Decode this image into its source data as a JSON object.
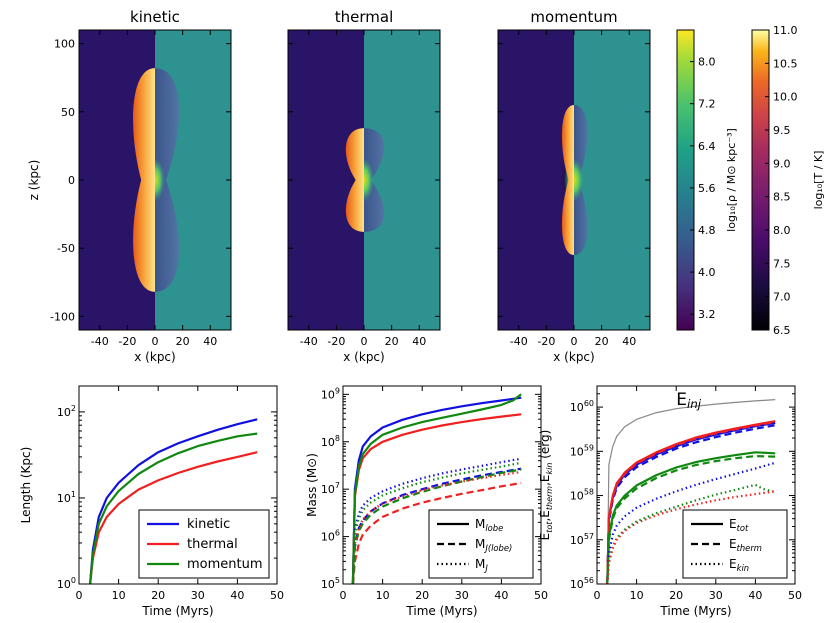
{
  "panels": [
    {
      "title": "kinetic",
      "left_half": "temperature",
      "lobe_half_width": 14,
      "lobe_half_height": 82,
      "waist": 10
    },
    {
      "title": "thermal",
      "left_half": "temperature",
      "lobe_half_width": 12,
      "lobe_half_height": 38,
      "waist": 6
    },
    {
      "title": "momentum",
      "left_half": "temperature",
      "lobe_half_width": 8,
      "lobe_half_height": 55,
      "waist": 4
    }
  ],
  "maps": {
    "xlabel": "x (kpc)",
    "ylabel": "z (kpc)",
    "xticks": [
      -40,
      -20,
      0,
      20,
      40
    ],
    "yticks": [
      -100,
      -50,
      0,
      50,
      100
    ],
    "xlim": [
      -55,
      55
    ],
    "ylim": [
      -110,
      110
    ]
  },
  "colorbars": [
    {
      "label": "log₁₀[ρ / M⊙ kpc⁻³]",
      "ticks": [
        "3.2",
        "4.0",
        "4.8",
        "5.6",
        "6.4",
        "7.2",
        "8.0"
      ],
      "range": [
        2.9,
        8.6
      ],
      "colormap": "viridis"
    },
    {
      "label": "log₁₀[T / K]",
      "ticks": [
        "6.5",
        "7.0",
        "7.5",
        "8.0",
        "8.5",
        "9.0",
        "9.5",
        "10.0",
        "10.5",
        "11.0"
      ],
      "range": [
        6.5,
        11.0
      ],
      "colormap": "inferno"
    }
  ],
  "colors": {
    "kinetic": "#1010e0",
    "thermal": "#f02020",
    "momentum": "#108810",
    "injected": "#888888"
  },
  "chart_data": [
    {
      "type": "line",
      "xlabel": "Time (Myrs)",
      "ylabel": "Length (Kpc)",
      "xlim": [
        0,
        50
      ],
      "ylim": [
        1,
        200
      ],
      "log_y": true,
      "xticks": [
        0,
        10,
        20,
        30,
        40,
        50
      ],
      "yticks": [
        {
          "v": 1,
          "t": "10",
          "e": "0"
        },
        {
          "v": 10,
          "t": "10",
          "e": "1"
        },
        {
          "v": 100,
          "t": "10",
          "e": "2"
        }
      ],
      "legend_position": "lower-right",
      "legend": [
        {
          "label": "kinetic",
          "color": "#1010e0",
          "style": "solid"
        },
        {
          "label": "thermal",
          "color": "#f02020",
          "style": "solid"
        },
        {
          "label": "momentum",
          "color": "#108810",
          "style": "solid"
        }
      ],
      "series": [
        {
          "key": "kinetic",
          "color": "#1010e0",
          "style": "solid",
          "x": [
            2.8,
            3.5,
            5,
            7,
            10,
            15,
            20,
            25,
            30,
            35,
            40,
            45
          ],
          "y": [
            1,
            2.5,
            6,
            10,
            15,
            24,
            34,
            43,
            52,
            62,
            72,
            82
          ]
        },
        {
          "key": "thermal",
          "color": "#f02020",
          "style": "solid",
          "x": [
            2.8,
            3.5,
            5,
            7,
            10,
            15,
            20,
            25,
            30,
            35,
            40,
            45
          ],
          "y": [
            1,
            2,
            4,
            6,
            8.5,
            12.5,
            16,
            19.5,
            23,
            26.5,
            30,
            34
          ]
        },
        {
          "key": "momentum",
          "color": "#108810",
          "style": "solid",
          "x": [
            2.8,
            3.5,
            5,
            7,
            10,
            15,
            20,
            25,
            30,
            35,
            40,
            45
          ],
          "y": [
            1,
            2.2,
            5,
            8,
            12,
            19,
            26,
            33,
            40,
            46,
            52,
            56
          ]
        }
      ]
    },
    {
      "type": "line",
      "xlabel": "Time (Myrs)",
      "ylabel": "Mass (M⊙)",
      "xlim": [
        0,
        50
      ],
      "ylim": [
        100000,
        1500000000
      ],
      "log_y": true,
      "xticks": [
        0,
        10,
        20,
        30,
        40,
        50
      ],
      "yticks": [
        {
          "v": 100000,
          "t": "10",
          "e": "5"
        },
        {
          "v": 1000000,
          "t": "10",
          "e": "6"
        },
        {
          "v": 10000000,
          "t": "10",
          "e": "7"
        },
        {
          "v": 100000000,
          "t": "10",
          "e": "8"
        },
        {
          "v": 1000000000,
          "t": "10",
          "e": "9"
        }
      ],
      "legend_position": "lower-right",
      "legend": [
        {
          "label": "M",
          "sub": "lobe",
          "color": "#000000",
          "style": "solid"
        },
        {
          "label": "M",
          "sub": "J(lobe)",
          "color": "#000000",
          "style": "dashed"
        },
        {
          "label": "M",
          "sub": "J",
          "color": "#000000",
          "style": "dotted"
        }
      ],
      "series": [
        {
          "key": "kinetic-lobe",
          "color": "#1010e0",
          "style": "solid",
          "x": [
            2.5,
            3,
            4,
            5,
            7,
            10,
            15,
            20,
            25,
            30,
            35,
            40,
            45
          ],
          "y": [
            100000,
            10000000,
            40000000,
            80000000,
            130000000,
            200000000,
            290000000,
            380000000,
            470000000,
            560000000,
            650000000,
            740000000,
            850000000
          ]
        },
        {
          "key": "thermal-lobe",
          "color": "#f02020",
          "style": "solid",
          "x": [
            2.5,
            3,
            4,
            5,
            7,
            10,
            15,
            20,
            25,
            30,
            35,
            40,
            45
          ],
          "y": [
            100000,
            7000000,
            25000000,
            45000000,
            70000000,
            100000000,
            140000000,
            180000000,
            220000000,
            260000000,
            300000000,
            340000000,
            380000000
          ]
        },
        {
          "key": "momentum-lobe",
          "color": "#108810",
          "style": "solid",
          "x": [
            2.5,
            3,
            4,
            5,
            7,
            10,
            15,
            20,
            25,
            30,
            35,
            40,
            43,
            45
          ],
          "y": [
            100000,
            8000000,
            30000000,
            55000000,
            90000000,
            140000000,
            200000000,
            260000000,
            320000000,
            390000000,
            480000000,
            600000000,
            750000000,
            1000000000
          ]
        },
        {
          "key": "kinetic-jlobe",
          "color": "#1010e0",
          "style": "dashed",
          "x": [
            2.5,
            3,
            4,
            5,
            7,
            10,
            15,
            20,
            25,
            30,
            35,
            40,
            45
          ],
          "y": [
            100000,
            700000,
            1500000,
            2200000,
            3400000,
            5000000,
            7500000,
            10000000,
            13000000,
            16000000,
            19500000,
            23000000,
            27000000
          ]
        },
        {
          "key": "thermal-jlobe",
          "color": "#f02020",
          "style": "dashed",
          "x": [
            2.5,
            3,
            4,
            5,
            7,
            10,
            15,
            20,
            25,
            30,
            35,
            40,
            45
          ],
          "y": [
            100000,
            300000,
            700000,
            1100000,
            1700000,
            2600000,
            3900000,
            5200000,
            6500000,
            8000000,
            9500000,
            11500000,
            13500000
          ]
        },
        {
          "key": "momentum-jlobe",
          "color": "#108810",
          "style": "dashed",
          "x": [
            2.5,
            3,
            4,
            5,
            7,
            10,
            15,
            20,
            25,
            30,
            35,
            40,
            45
          ],
          "y": [
            100000,
            600000,
            1300000,
            1900000,
            2900000,
            4300000,
            6400000,
            8800000,
            11500000,
            14500000,
            18000000,
            22000000,
            26000000
          ]
        },
        {
          "key": "kinetic-j",
          "color": "#1010e0",
          "style": "dotted",
          "x": [
            2.5,
            3,
            4,
            5,
            7,
            10,
            15,
            20,
            25,
            30,
            35,
            40,
            45
          ],
          "y": [
            100000,
            1500000,
            3000000,
            4500000,
            6500000,
            9000000,
            13000000,
            17000000,
            21500000,
            26000000,
            31000000,
            37000000,
            44000000
          ]
        },
        {
          "key": "thermal-j",
          "color": "#f02020",
          "style": "dotted",
          "x": [
            2.5,
            3,
            4,
            5,
            7,
            10,
            15,
            20,
            25,
            30,
            35,
            40,
            45
          ],
          "y": [
            100000,
            700000,
            1500000,
            2300000,
            3400000,
            5000000,
            7000000,
            9500000,
            12000000,
            14500000,
            17000000,
            20000000,
            23000000
          ]
        },
        {
          "key": "momentum-j",
          "color": "#108810",
          "style": "dotted",
          "x": [
            2.5,
            3,
            4,
            5,
            7,
            10,
            15,
            20,
            25,
            30,
            35,
            40,
            45
          ],
          "y": [
            100000,
            1200000,
            2400000,
            3600000,
            5200000,
            7400000,
            10500000,
            14000000,
            17500000,
            21500000,
            25500000,
            30000000,
            36000000
          ]
        }
      ]
    },
    {
      "type": "line",
      "xlabel": "Time (Myrs)",
      "ylabel": "E_tot,E_therm,E_kin (erg)",
      "xlim": [
        0,
        50
      ],
      "ylim": [
        1e+56,
        3e+60
      ],
      "log_y": true,
      "xticks": [
        0,
        10,
        20,
        30,
        40,
        50
      ],
      "yticks": [
        {
          "v": 1e+56,
          "t": "10",
          "e": "56"
        },
        {
          "v": 1e+57,
          "t": "10",
          "e": "57"
        },
        {
          "v": 1e+58,
          "t": "10",
          "e": "58"
        },
        {
          "v": 1e+59,
          "t": "10",
          "e": "59"
        },
        {
          "v": 1e+60,
          "t": "10",
          "e": "60"
        }
      ],
      "annotation": {
        "text": "E",
        "sub": "inj",
        "x": 20,
        "y": 9e+59
      },
      "legend_position": "lower-right",
      "legend": [
        {
          "label": "E",
          "sub": "tot",
          "color": "#000000",
          "style": "solid"
        },
        {
          "label": "E",
          "sub": "therm",
          "color": "#000000",
          "style": "dashed"
        },
        {
          "label": "E",
          "sub": "kin",
          "color": "#000000",
          "style": "dotted"
        }
      ],
      "series": [
        {
          "key": "injected",
          "color": "#888888",
          "style": "thin",
          "x": [
            2.6,
            3,
            4,
            5,
            7,
            10,
            15,
            20,
            25,
            30,
            35,
            40,
            45
          ],
          "y": [
            1e+56,
            5e+58,
            1.3e+59,
            2.2e+59,
            3.6e+59,
            5.3e+59,
            7.5e+59,
            9.2e+59,
            1.05e+60,
            1.17e+60,
            1.28e+60,
            1.38e+60,
            1.48e+60
          ]
        },
        {
          "key": "kinetic-tot",
          "color": "#1010e0",
          "style": "solid",
          "x": [
            2.6,
            3,
            4,
            5,
            7,
            10,
            15,
            20,
            25,
            30,
            35,
            40,
            45
          ],
          "y": [
            1e+56,
            3e+57,
            9e+57,
            1.7e+58,
            3e+58,
            5e+58,
            8.5e+58,
            1.3e+59,
            1.85e+59,
            2.4e+59,
            3e+59,
            3.7e+59,
            4.4e+59
          ]
        },
        {
          "key": "thermal-tot",
          "color": "#f02020",
          "style": "solid",
          "x": [
            2.6,
            3,
            4,
            5,
            7,
            10,
            15,
            20,
            25,
            30,
            35,
            40,
            45
          ],
          "y": [
            1e+56,
            3.3e+57,
            1e+58,
            1.9e+58,
            3.3e+58,
            5.6e+58,
            9.5e+58,
            1.45e+59,
            2.05e+59,
            2.65e+59,
            3.3e+59,
            4e+59,
            4.8e+59
          ]
        },
        {
          "key": "kinetic-therm",
          "color": "#1010e0",
          "style": "dashed",
          "x": [
            2.6,
            3,
            4,
            5,
            7,
            10,
            15,
            20,
            25,
            30,
            35,
            40,
            45
          ],
          "y": [
            1e+56,
            2.6e+57,
            8e+57,
            1.5e+58,
            2.6e+58,
            4.4e+58,
            7.5e+58,
            1.15e+59,
            1.6e+59,
            2.1e+59,
            2.65e+59,
            3.25e+59,
            3.9e+59
          ]
        },
        {
          "key": "thermal-therm",
          "color": "#f02020",
          "style": "dashed",
          "x": [
            2.6,
            3,
            4,
            5,
            7,
            10,
            15,
            20,
            25,
            30,
            35,
            40,
            45
          ],
          "y": [
            1e+56,
            3.1e+57,
            9.4e+57,
            1.8e+58,
            3.1e+58,
            5.3e+58,
            9e+58,
            1.38e+59,
            1.95e+59,
            2.55e+59,
            3.15e+59,
            3.85e+59,
            4.6e+59
          ]
        },
        {
          "key": "momentum-tot",
          "color": "#108810",
          "style": "solid",
          "x": [
            2.6,
            3,
            4,
            5,
            7,
            10,
            15,
            20,
            25,
            30,
            35,
            40,
            45
          ],
          "y": [
            1e+56,
            1.2e+57,
            3.5e+57,
            6e+57,
            1e+58,
            1.7e+58,
            2.9e+58,
            4.3e+58,
            5.7e+58,
            7e+58,
            8.2e+58,
            9.5e+58,
            9e+58
          ]
        },
        {
          "key": "momentum-therm",
          "color": "#108810",
          "style": "dashed",
          "x": [
            2.6,
            3,
            4,
            5,
            7,
            10,
            15,
            20,
            25,
            30,
            35,
            40,
            45
          ],
          "y": [
            1e+56,
            1e+57,
            3e+57,
            5.2e+57,
            8.6e+57,
            1.45e+58,
            2.5e+58,
            3.7e+58,
            4.9e+58,
            6e+58,
            7e+58,
            7.8e+58,
            7.6e+58
          ]
        },
        {
          "key": "kinetic-kin",
          "color": "#1010e0",
          "style": "dotted",
          "x": [
            2.6,
            3,
            4,
            5,
            7,
            10,
            15,
            20,
            25,
            30,
            35,
            40,
            45
          ],
          "y": [
            1e+56,
            5e+56,
            1.3e+57,
            2.1e+57,
            3.4e+57,
            5.3e+57,
            8.5e+57,
            1.25e+58,
            1.75e+58,
            2.35e+58,
            3.1e+58,
            4.1e+58,
            5.5e+58
          ]
        },
        {
          "key": "momentum-kin",
          "color": "#108810",
          "style": "dotted",
          "x": [
            2.6,
            3,
            4,
            5,
            7,
            10,
            15,
            20,
            25,
            30,
            35,
            40,
            42,
            45
          ],
          "y": [
            1e+56,
            3e+56,
            7e+56,
            1.1e+57,
            1.7e+57,
            2.6e+57,
            4e+57,
            5.6e+57,
            7.8e+57,
            1.05e+58,
            1.35e+58,
            1.75e+58,
            1.4e+58,
            1.2e+58
          ]
        },
        {
          "key": "thermal-kin",
          "color": "#f02020",
          "style": "dotted",
          "x": [
            2.6,
            3,
            4,
            5,
            7,
            10,
            15,
            20,
            25,
            30,
            35,
            40,
            45
          ],
          "y": [
            1e+56,
            3e+56,
            6.5e+56,
            1e+57,
            1.6e+57,
            2.4e+57,
            3.6e+57,
            4.9e+57,
            6.3e+57,
            7.8e+57,
            9.3e+57,
            1.08e+58,
            1.25e+58
          ]
        }
      ]
    }
  ]
}
